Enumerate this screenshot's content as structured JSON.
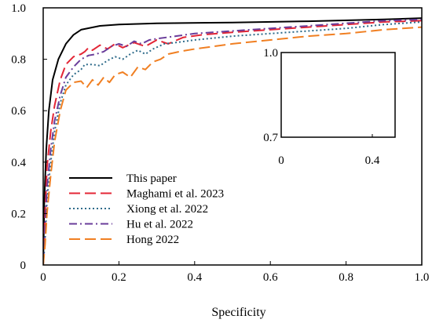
{
  "chart_data": {
    "type": "line",
    "title": "",
    "xlabel": "Specificity",
    "ylabel": "",
    "xlim": [
      0,
      1
    ],
    "ylim": [
      0,
      1
    ],
    "x_ticks": [
      "0",
      "0.2",
      "0.4",
      "0.6",
      "0.8",
      "1.0"
    ],
    "y_ticks": [
      "0",
      "0.2",
      "0.4",
      "0.6",
      "0.8",
      "1.0"
    ],
    "x_tick_values": [
      0,
      0.2,
      0.4,
      0.6,
      0.8,
      1.0
    ],
    "y_tick_values": [
      0,
      0.2,
      0.4,
      0.6,
      0.8,
      1.0
    ],
    "grid": false,
    "legend_position": "bottom-left",
    "series": [
      {
        "name": "This paper",
        "color": "#000000",
        "dash": "solid",
        "points": [
          [
            0,
            0
          ],
          [
            0.003,
            0.25
          ],
          [
            0.008,
            0.45
          ],
          [
            0.015,
            0.6
          ],
          [
            0.025,
            0.72
          ],
          [
            0.04,
            0.8
          ],
          [
            0.06,
            0.86
          ],
          [
            0.08,
            0.895
          ],
          [
            0.1,
            0.915
          ],
          [
            0.15,
            0.93
          ],
          [
            0.2,
            0.935
          ],
          [
            0.3,
            0.94
          ],
          [
            0.5,
            0.943
          ],
          [
            0.7,
            0.948
          ],
          [
            0.9,
            0.955
          ],
          [
            1.0,
            0.96
          ]
        ]
      },
      {
        "name": "Maghami et al. 2023",
        "color": "#e32636",
        "dash": "long-dash",
        "points": [
          [
            0,
            0
          ],
          [
            0.005,
            0.2
          ],
          [
            0.01,
            0.38
          ],
          [
            0.02,
            0.52
          ],
          [
            0.03,
            0.62
          ],
          [
            0.045,
            0.72
          ],
          [
            0.06,
            0.78
          ],
          [
            0.08,
            0.81
          ],
          [
            0.1,
            0.82
          ],
          [
            0.11,
            0.83
          ],
          [
            0.12,
            0.845
          ],
          [
            0.13,
            0.835
          ],
          [
            0.15,
            0.855
          ],
          [
            0.17,
            0.84
          ],
          [
            0.19,
            0.86
          ],
          [
            0.21,
            0.845
          ],
          [
            0.24,
            0.865
          ],
          [
            0.27,
            0.85
          ],
          [
            0.3,
            0.875
          ],
          [
            0.33,
            0.86
          ],
          [
            0.37,
            0.885
          ],
          [
            0.42,
            0.895
          ],
          [
            0.5,
            0.905
          ],
          [
            0.6,
            0.915
          ],
          [
            0.7,
            0.925
          ],
          [
            0.8,
            0.935
          ],
          [
            0.9,
            0.945
          ],
          [
            1.0,
            0.95
          ]
        ]
      },
      {
        "name": "Xiong et al. 2022",
        "color": "#2e6b8a",
        "dash": "dotted",
        "points": [
          [
            0,
            0
          ],
          [
            0.005,
            0.1
          ],
          [
            0.01,
            0.25
          ],
          [
            0.02,
            0.4
          ],
          [
            0.03,
            0.52
          ],
          [
            0.045,
            0.63
          ],
          [
            0.06,
            0.7
          ],
          [
            0.08,
            0.74
          ],
          [
            0.1,
            0.76
          ],
          [
            0.11,
            0.78
          ],
          [
            0.13,
            0.78
          ],
          [
            0.15,
            0.775
          ],
          [
            0.17,
            0.795
          ],
          [
            0.19,
            0.81
          ],
          [
            0.21,
            0.8
          ],
          [
            0.23,
            0.82
          ],
          [
            0.25,
            0.835
          ],
          [
            0.27,
            0.82
          ],
          [
            0.29,
            0.84
          ],
          [
            0.32,
            0.86
          ],
          [
            0.35,
            0.865
          ],
          [
            0.4,
            0.875
          ],
          [
            0.5,
            0.89
          ],
          [
            0.6,
            0.9
          ],
          [
            0.7,
            0.91
          ],
          [
            0.8,
            0.92
          ],
          [
            0.9,
            0.935
          ],
          [
            1.0,
            0.945
          ]
        ]
      },
      {
        "name": "Hu et al. 2022",
        "color": "#6a3d9a",
        "dash": "dash-dot",
        "points": [
          [
            0,
            0
          ],
          [
            0.005,
            0.15
          ],
          [
            0.01,
            0.3
          ],
          [
            0.02,
            0.45
          ],
          [
            0.03,
            0.56
          ],
          [
            0.045,
            0.66
          ],
          [
            0.06,
            0.73
          ],
          [
            0.08,
            0.77
          ],
          [
            0.1,
            0.8
          ],
          [
            0.12,
            0.815
          ],
          [
            0.14,
            0.82
          ],
          [
            0.16,
            0.83
          ],
          [
            0.18,
            0.85
          ],
          [
            0.2,
            0.86
          ],
          [
            0.22,
            0.85
          ],
          [
            0.24,
            0.87
          ],
          [
            0.26,
            0.86
          ],
          [
            0.28,
            0.875
          ],
          [
            0.3,
            0.88
          ],
          [
            0.35,
            0.89
          ],
          [
            0.4,
            0.9
          ],
          [
            0.5,
            0.91
          ],
          [
            0.6,
            0.92
          ],
          [
            0.7,
            0.93
          ],
          [
            0.8,
            0.94
          ],
          [
            0.9,
            0.95
          ],
          [
            1.0,
            0.955
          ]
        ]
      },
      {
        "name": "Hong 2022",
        "color": "#f07f22",
        "dash": "long-dash",
        "points": [
          [
            0,
            0
          ],
          [
            0.005,
            0.08
          ],
          [
            0.01,
            0.2
          ],
          [
            0.02,
            0.35
          ],
          [
            0.03,
            0.48
          ],
          [
            0.045,
            0.6
          ],
          [
            0.06,
            0.68
          ],
          [
            0.08,
            0.71
          ],
          [
            0.1,
            0.715
          ],
          [
            0.115,
            0.69
          ],
          [
            0.13,
            0.72
          ],
          [
            0.145,
            0.7
          ],
          [
            0.16,
            0.73
          ],
          [
            0.175,
            0.71
          ],
          [
            0.19,
            0.74
          ],
          [
            0.21,
            0.75
          ],
          [
            0.23,
            0.73
          ],
          [
            0.25,
            0.77
          ],
          [
            0.27,
            0.76
          ],
          [
            0.29,
            0.79
          ],
          [
            0.31,
            0.8
          ],
          [
            0.33,
            0.82
          ],
          [
            0.36,
            0.83
          ],
          [
            0.4,
            0.84
          ],
          [
            0.5,
            0.86
          ],
          [
            0.6,
            0.875
          ],
          [
            0.7,
            0.89
          ],
          [
            0.8,
            0.9
          ],
          [
            0.9,
            0.915
          ],
          [
            1.0,
            0.925
          ]
        ]
      }
    ],
    "inset": {
      "xlim": [
        0,
        0.5
      ],
      "ylim": [
        0.7,
        1.0
      ],
      "x_ticks": [
        "0",
        "0.4"
      ],
      "y_ticks": [
        "0.7",
        "1.0"
      ],
      "x_tick_values": [
        0,
        0.4
      ],
      "y_tick_values": [
        0.7,
        1.0
      ]
    }
  }
}
